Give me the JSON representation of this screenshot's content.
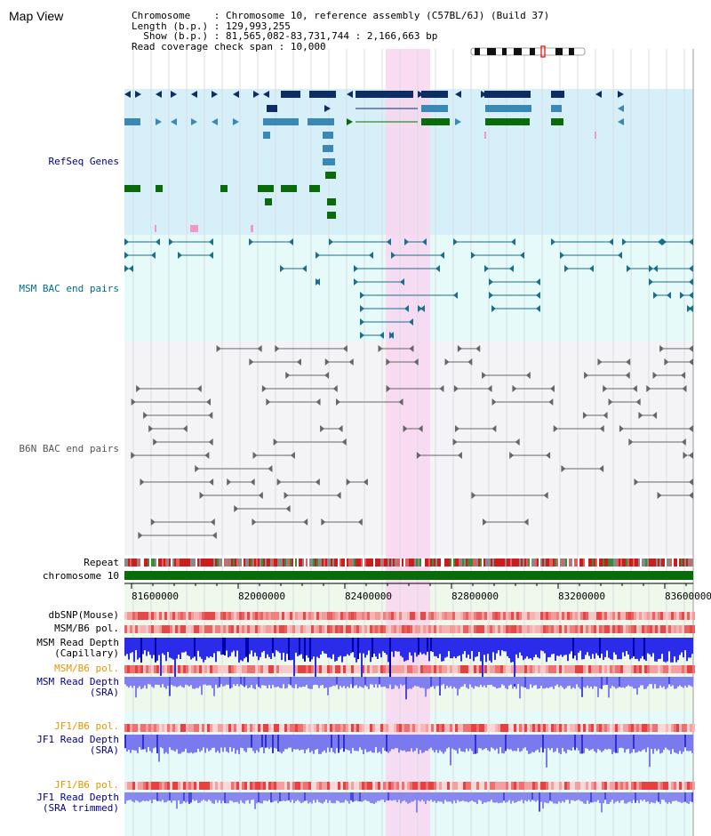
{
  "header": {
    "title": "Map View",
    "chromosome_key": "Chromosome   ",
    "chromosome_val": "Chromosome 10, reference assembly (C57BL/6J) (Build 37)",
    "length_key": "Length (b.p.)",
    "length_val": "129,993,255",
    "show_key": "  Show (b.p.)",
    "show_val": "81,565,082-83,731,744 : 2,166,663 bp",
    "coverage_key": "Read coverage check span",
    "coverage_val": "10,000"
  },
  "tracks": {
    "refseq": "RefSeq Genes",
    "msm_bac": "MSM BAC end pairs",
    "b6n_bac": "B6N BAC end pairs",
    "repeat": "Repeat",
    "chromosome": "chromosome 10",
    "dbsnp": "dbSNP(Mouse)",
    "msm_pol1": "MSM/B6 pol.",
    "msm_depth_cap_1": "MSM Read Depth",
    "msm_depth_cap_2": "(Capillary)",
    "msm_pol2": "MSM/B6 pol.",
    "msm_depth_sra_1": "MSM Read Depth",
    "msm_depth_sra_2": "(SRA)",
    "jf1_pol1": "JF1/B6 pol.",
    "jf1_depth_1": "JF1 Read Depth",
    "jf1_depth_2": "(SRA)",
    "jf1_pol2": "JF1/B6 pol.",
    "jf1_trim_1": "JF1 Read Depth",
    "jf1_trim_2": "(SRA trimmed)"
  },
  "axis": {
    "ticks": [
      "81600000",
      "82000000",
      "82400000",
      "82800000",
      "83200000",
      "83600000"
    ]
  },
  "colors": {
    "refseq_bg": "#d6eff9",
    "msm_bac_bg": "#e6fafa",
    "b6n_bac_bg": "#f4f4f7",
    "highlight": "#f8d6f0",
    "gene_dark": "#0e2d63",
    "gene_mid": "#3a88b5",
    "gene_green": "#0a6b0a",
    "msm_line": "#1a6f8c",
    "b6n_line": "#666666",
    "chromosome_bar": "#0a6b0a",
    "label_blue": "#00008b",
    "label_teal": "#006b8a",
    "label_orange": "#e69500"
  }
}
